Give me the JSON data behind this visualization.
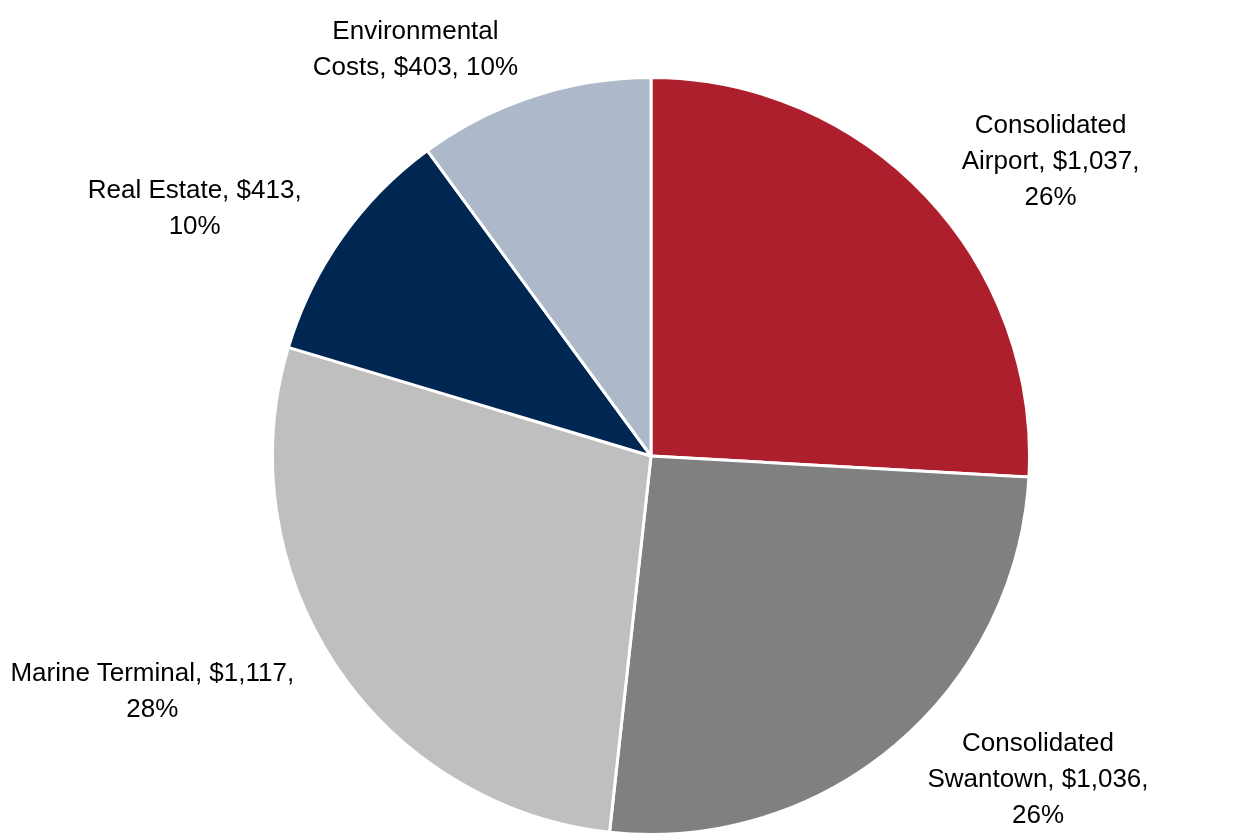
{
  "chart_data": {
    "type": "pie",
    "categories": [
      "Consolidated Airport",
      "Consolidated Swantown",
      "Marine Terminal",
      "Real Estate",
      "Environmental Costs"
    ],
    "values": [
      1037,
      1036,
      1117,
      413,
      403
    ],
    "value_labels": [
      "$1,037, 26%",
      "$1,036, 26%",
      "$1,117, 28%",
      "$413, 10%",
      "$403, 10%"
    ],
    "colors": [
      "#ae1f2e",
      "#808080",
      "#bfbfbf",
      "#002652",
      "#adb9ca"
    ],
    "legend": false
  }
}
